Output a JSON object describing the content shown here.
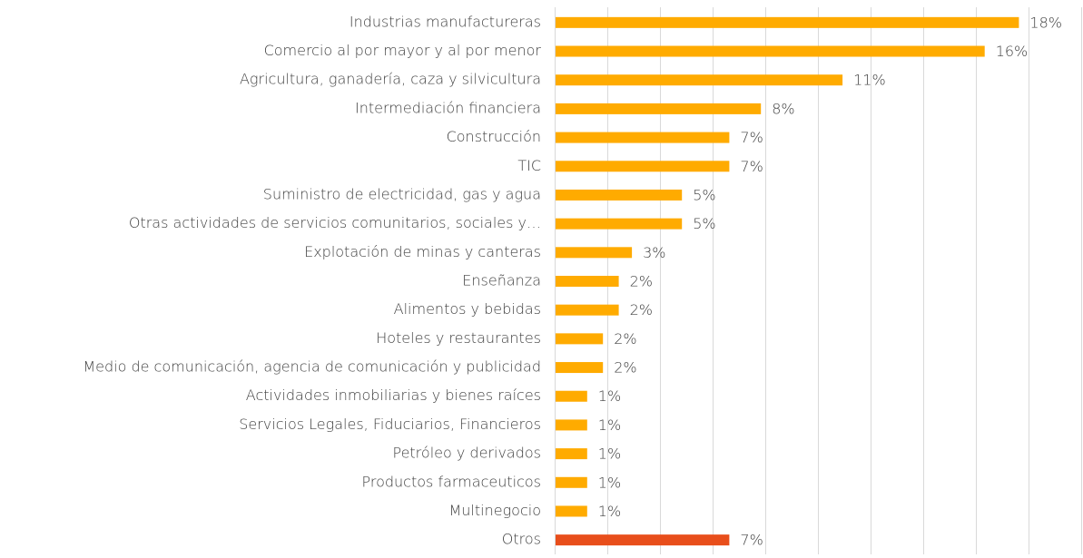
{
  "chart_data": {
    "type": "bar",
    "orientation": "horizontal",
    "categories": [
      "Industrias manufactureras",
      "Comercio al por mayor y al por menor",
      "Agricultura, ganadería, caza y silvicultura",
      "Intermediación financiera",
      "Construcción",
      "TIC",
      "Suministro de electricidad, gas y agua",
      "Otras actividades de servicios comunitarios, sociales y…",
      "Explotación de minas y canteras",
      "Enseñanza",
      "Alimentos y bebidas",
      "Hoteles y restaurantes",
      "Medio de comunicación, agencia de comunicación y publicidad",
      "Actividades inmobiliarias y bienes raíces",
      "Servicios Legales, Fiduciarios, Financieros",
      "Petróleo y derivados",
      "Productos farmaceuticos",
      "Multinegocio",
      "Otros"
    ],
    "values": [
      17.6,
      16.3,
      10.9,
      7.8,
      6.6,
      6.6,
      4.8,
      4.8,
      2.9,
      2.4,
      2.4,
      1.8,
      1.8,
      1.2,
      1.2,
      1.2,
      1.2,
      1.2,
      6.6
    ],
    "value_labels": [
      "18%",
      "16%",
      "11%",
      "8%",
      "7%",
      "7%",
      "5%",
      "5%",
      "3%",
      "2%",
      "2%",
      "2%",
      "2%",
      "1%",
      "1%",
      "1%",
      "1%",
      "1%",
      "7%"
    ],
    "colors": [
      "#ffab00",
      "#ffab00",
      "#ffab00",
      "#ffab00",
      "#ffab00",
      "#ffab00",
      "#ffab00",
      "#ffab00",
      "#ffab00",
      "#ffab00",
      "#ffab00",
      "#ffab00",
      "#ffab00",
      "#ffab00",
      "#ffab00",
      "#ffab00",
      "#ffab00",
      "#ffab00",
      "#e84e1b"
    ],
    "xlim": [
      0,
      20
    ],
    "xticks": [
      0,
      2,
      4,
      6,
      8,
      10,
      12,
      14,
      16,
      18,
      20
    ],
    "grid": true
  }
}
